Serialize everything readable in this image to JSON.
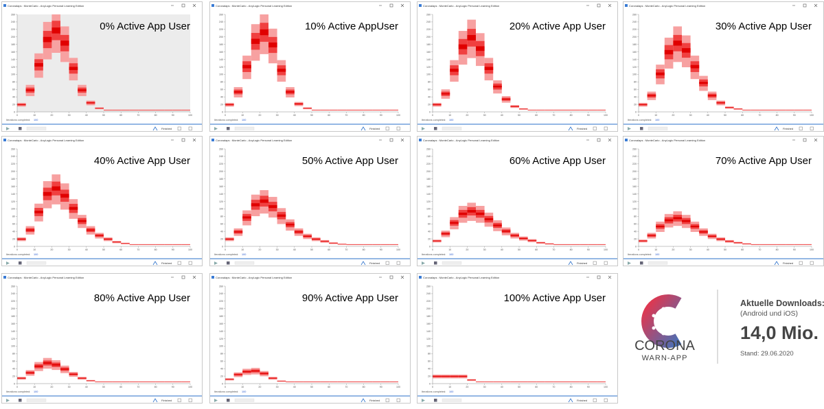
{
  "window_title": "Coronalaps : MonteCarlo - AnyLogic Personal Learning Edition",
  "status_label": "Iterations completed:",
  "status_value": "100",
  "finished": "Finished",
  "xlim": [
    0,
    100
  ],
  "ylim": [
    0,
    260
  ],
  "xticks": [
    0,
    10,
    20,
    30,
    40,
    50,
    60,
    70,
    80,
    90,
    100
  ],
  "yticks": [
    0,
    20,
    40,
    60,
    80,
    100,
    120,
    140,
    160,
    180,
    200,
    220,
    240,
    260
  ],
  "x": [
    0,
    5,
    10,
    15,
    20,
    25,
    30,
    35,
    40,
    45,
    50,
    55,
    60,
    65,
    70,
    75,
    80,
    85,
    90,
    95
  ],
  "windows": [
    {
      "label": "0% Active App User",
      "values": [
        20,
        60,
        130,
        200,
        225,
        190,
        120,
        60,
        25,
        10,
        5,
        5,
        5,
        5,
        5,
        5,
        5,
        5,
        5,
        5
      ]
    },
    {
      "label": "10% Active AppUser",
      "values": [
        20,
        55,
        125,
        195,
        220,
        185,
        115,
        55,
        22,
        10,
        5,
        5,
        5,
        5,
        5,
        5,
        5,
        5,
        5,
        5
      ]
    },
    {
      "label": "20% Active App User",
      "values": [
        20,
        50,
        115,
        180,
        205,
        175,
        120,
        70,
        35,
        15,
        8,
        5,
        5,
        5,
        5,
        5,
        5,
        5,
        5,
        5
      ]
    },
    {
      "label": "30% Active App User",
      "values": [
        20,
        45,
        105,
        165,
        190,
        170,
        125,
        80,
        45,
        25,
        12,
        8,
        5,
        5,
        5,
        5,
        5,
        5,
        5,
        5
      ]
    },
    {
      "label": "40% Active App User",
      "values": [
        20,
        45,
        95,
        145,
        160,
        140,
        105,
        70,
        45,
        30,
        20,
        12,
        8,
        5,
        5,
        5,
        5,
        5,
        5,
        5
      ]
    },
    {
      "label": "50% Active App User",
      "values": [
        20,
        40,
        80,
        115,
        125,
        110,
        85,
        60,
        40,
        28,
        20,
        14,
        9,
        6,
        5,
        5,
        5,
        5,
        5,
        5
      ]
    },
    {
      "label": "60% Active App User",
      "values": [
        15,
        35,
        65,
        90,
        97,
        90,
        75,
        58,
        42,
        30,
        22,
        16,
        10,
        7,
        5,
        5,
        5,
        5,
        5,
        5
      ]
    },
    {
      "label": "70% Active App User",
      "values": [
        15,
        30,
        55,
        72,
        78,
        70,
        55,
        40,
        28,
        20,
        14,
        10,
        7,
        5,
        5,
        5,
        5,
        5,
        5,
        5
      ]
    },
    {
      "label": "80% Active App User",
      "values": [
        15,
        30,
        48,
        57,
        52,
        40,
        26,
        15,
        8,
        5,
        5,
        5,
        5,
        5,
        5,
        5,
        5,
        5,
        5,
        5
      ]
    },
    {
      "label": "90% Active App User",
      "values": [
        12,
        25,
        33,
        35,
        28,
        15,
        7,
        5,
        5,
        5,
        5,
        5,
        5,
        5,
        5,
        5,
        5,
        5,
        5,
        5
      ]
    },
    {
      "label": "100% Active App User",
      "values": [
        20,
        20,
        20,
        20,
        10,
        5,
        5,
        5,
        5,
        5,
        5,
        5,
        5,
        5,
        5,
        5,
        5,
        5,
        5,
        5
      ]
    }
  ],
  "logo": {
    "name": "CORONA",
    "sub": "WARN-APP",
    "heading": "Aktuelle Downloads:",
    "platforms": "(Android und iOS)",
    "count": "14,0 Mio.",
    "date": "Stand: 29.06.2020"
  }
}
